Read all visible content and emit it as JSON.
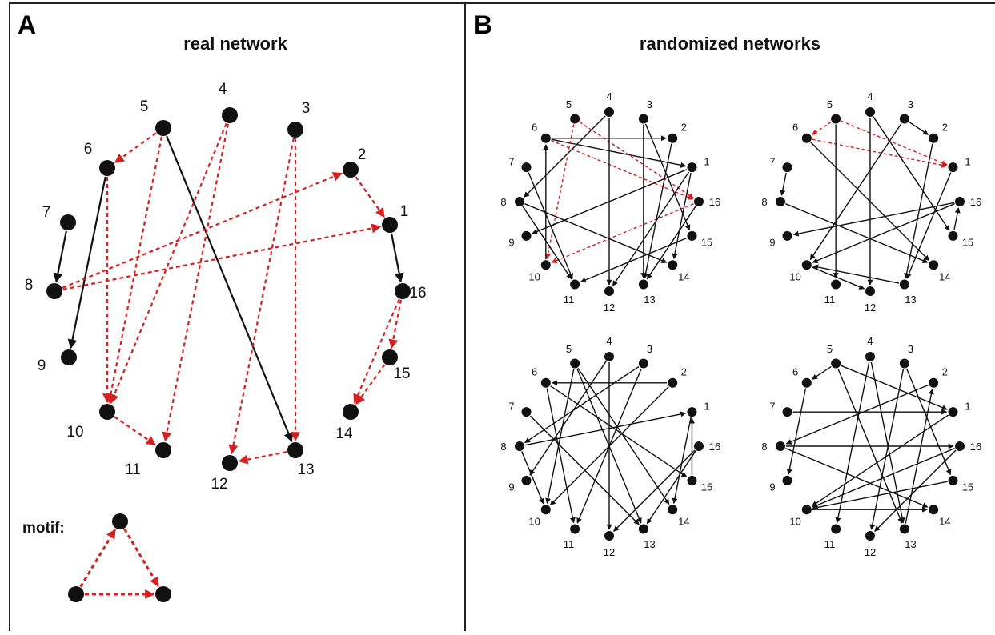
{
  "panels": [
    {
      "letter": "A",
      "title": "real network"
    },
    {
      "letter": "B",
      "title": "randomized networks"
    }
  ],
  "motif_label": "motif:",
  "colors": {
    "black_edge": "#111111",
    "red_edge": "#d42020",
    "node": "#111111",
    "border": "#222222"
  },
  "real_network": {
    "nodes": [
      "1",
      "2",
      "3",
      "4",
      "5",
      "6",
      "7",
      "8",
      "9",
      "10",
      "11",
      "12",
      "13",
      "14",
      "15",
      "16"
    ],
    "edges": [
      {
        "from": "5",
        "to": "6",
        "type": "red"
      },
      {
        "from": "5",
        "to": "10",
        "type": "red"
      },
      {
        "from": "5",
        "to": "13",
        "type": "black"
      },
      {
        "from": "4",
        "to": "10",
        "type": "red"
      },
      {
        "from": "4",
        "to": "11",
        "type": "red"
      },
      {
        "from": "3",
        "to": "12",
        "type": "red"
      },
      {
        "from": "3",
        "to": "13",
        "type": "red"
      },
      {
        "from": "6",
        "to": "9",
        "type": "black"
      },
      {
        "from": "6",
        "to": "10",
        "type": "red"
      },
      {
        "from": "7",
        "to": "8",
        "type": "black"
      },
      {
        "from": "8",
        "to": "2",
        "type": "red"
      },
      {
        "from": "8",
        "to": "1",
        "type": "red"
      },
      {
        "from": "2",
        "to": "1",
        "type": "red"
      },
      {
        "from": "1",
        "to": "16",
        "type": "black"
      },
      {
        "from": "16",
        "to": "15",
        "type": "red"
      },
      {
        "from": "16",
        "to": "14",
        "type": "red"
      },
      {
        "from": "15",
        "to": "14",
        "type": "red"
      },
      {
        "from": "10",
        "to": "11",
        "type": "red"
      },
      {
        "from": "13",
        "to": "12",
        "type": "red"
      }
    ]
  },
  "randomized_networks": [
    {
      "edges": [
        {
          "from": "6",
          "to": "2",
          "type": "black"
        },
        {
          "from": "6",
          "to": "1",
          "type": "black"
        },
        {
          "from": "6",
          "to": "16",
          "type": "red"
        },
        {
          "from": "5",
          "to": "10",
          "type": "red"
        },
        {
          "from": "5",
          "to": "16",
          "type": "red"
        },
        {
          "from": "16",
          "to": "10",
          "type": "red"
        },
        {
          "from": "4",
          "to": "8",
          "type": "black"
        },
        {
          "from": "4",
          "to": "12",
          "type": "black"
        },
        {
          "from": "3",
          "to": "13",
          "type": "black"
        },
        {
          "from": "3",
          "to": "15",
          "type": "black"
        },
        {
          "from": "2",
          "to": "13",
          "type": "black"
        },
        {
          "from": "1",
          "to": "9",
          "type": "black"
        },
        {
          "from": "1",
          "to": "12",
          "type": "black"
        },
        {
          "from": "1",
          "to": "14",
          "type": "black"
        },
        {
          "from": "8",
          "to": "11",
          "type": "black"
        },
        {
          "from": "8",
          "to": "14",
          "type": "black"
        },
        {
          "from": "7",
          "to": "11",
          "type": "black"
        },
        {
          "from": "10",
          "to": "6",
          "type": "black"
        },
        {
          "from": "15",
          "to": "11",
          "type": "black"
        },
        {
          "from": "16",
          "to": "13",
          "type": "black"
        }
      ]
    },
    {
      "edges": [
        {
          "from": "5",
          "to": "6",
          "type": "red"
        },
        {
          "from": "5",
          "to": "1",
          "type": "red"
        },
        {
          "from": "6",
          "to": "1",
          "type": "red"
        },
        {
          "from": "3",
          "to": "2",
          "type": "black"
        },
        {
          "from": "7",
          "to": "8",
          "type": "black"
        },
        {
          "from": "4",
          "to": "12",
          "type": "black"
        },
        {
          "from": "4",
          "to": "15",
          "type": "black"
        },
        {
          "from": "5",
          "to": "11",
          "type": "black"
        },
        {
          "from": "3",
          "to": "10",
          "type": "black"
        },
        {
          "from": "2",
          "to": "13",
          "type": "black"
        },
        {
          "from": "1",
          "to": "13",
          "type": "black"
        },
        {
          "from": "16",
          "to": "9",
          "type": "black"
        },
        {
          "from": "16",
          "to": "10",
          "type": "black"
        },
        {
          "from": "8",
          "to": "14",
          "type": "black"
        },
        {
          "from": "6",
          "to": "14",
          "type": "black"
        },
        {
          "from": "10",
          "to": "12",
          "type": "black"
        },
        {
          "from": "13",
          "to": "10",
          "type": "black"
        },
        {
          "from": "15",
          "to": "16",
          "type": "black"
        }
      ]
    },
    {
      "edges": [
        {
          "from": "2",
          "to": "6",
          "type": "black"
        },
        {
          "from": "5",
          "to": "10",
          "type": "black"
        },
        {
          "from": "5",
          "to": "13",
          "type": "black"
        },
        {
          "from": "4",
          "to": "12",
          "type": "black"
        },
        {
          "from": "4",
          "to": "9",
          "type": "black"
        },
        {
          "from": "3",
          "to": "8",
          "type": "black"
        },
        {
          "from": "3",
          "to": "11",
          "type": "black"
        },
        {
          "from": "2",
          "to": "10",
          "type": "black"
        },
        {
          "from": "6",
          "to": "15",
          "type": "black"
        },
        {
          "from": "6",
          "to": "11",
          "type": "black"
        },
        {
          "from": "8",
          "to": "1",
          "type": "black"
        },
        {
          "from": "7",
          "to": "13",
          "type": "black"
        },
        {
          "from": "1",
          "to": "14",
          "type": "black"
        },
        {
          "from": "16",
          "to": "13",
          "type": "black"
        },
        {
          "from": "16",
          "to": "12",
          "type": "black"
        },
        {
          "from": "15",
          "to": "1",
          "type": "black"
        },
        {
          "from": "8",
          "to": "10",
          "type": "black"
        },
        {
          "from": "5",
          "to": "14",
          "type": "black"
        }
      ]
    },
    {
      "edges": [
        {
          "from": "7",
          "to": "1",
          "type": "black"
        },
        {
          "from": "8",
          "to": "16",
          "type": "black"
        },
        {
          "from": "5",
          "to": "6",
          "type": "black"
        },
        {
          "from": "5",
          "to": "1",
          "type": "black"
        },
        {
          "from": "4",
          "to": "11",
          "type": "black"
        },
        {
          "from": "4",
          "to": "13",
          "type": "black"
        },
        {
          "from": "3",
          "to": "15",
          "type": "black"
        },
        {
          "from": "3",
          "to": "12",
          "type": "black"
        },
        {
          "from": "8",
          "to": "14",
          "type": "black"
        },
        {
          "from": "2",
          "to": "8",
          "type": "black"
        },
        {
          "from": "1",
          "to": "10",
          "type": "black"
        },
        {
          "from": "16",
          "to": "10",
          "type": "black"
        },
        {
          "from": "15",
          "to": "10",
          "type": "black"
        },
        {
          "from": "10",
          "to": "14",
          "type": "black"
        },
        {
          "from": "6",
          "to": "9",
          "type": "black"
        },
        {
          "from": "13",
          "to": "2",
          "type": "black"
        },
        {
          "from": "5",
          "to": "13",
          "type": "black"
        },
        {
          "from": "16",
          "to": "12",
          "type": "black"
        }
      ]
    }
  ]
}
